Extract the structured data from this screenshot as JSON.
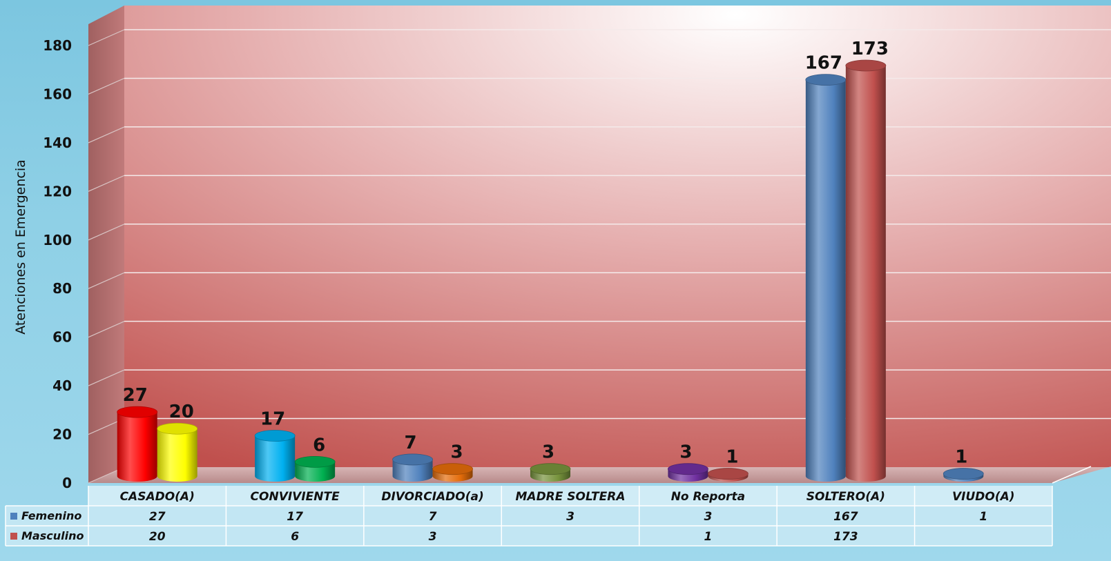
{
  "chart_data": {
    "type": "bar",
    "ylabel": "Atenciones en Emergencia",
    "ylim": [
      0,
      180
    ],
    "yticks": [
      0,
      20,
      40,
      60,
      80,
      100,
      120,
      140,
      160,
      180
    ],
    "grid": true,
    "categories": [
      "CASADO(A)",
      "CONVIVIENTE",
      "DIVORCIADO(a)",
      "MADRE SOLTERA",
      "No Reporta",
      "SOLTERO(A)",
      "VIUDO(A)"
    ],
    "series": [
      {
        "name": "Femenino",
        "values": [
          27,
          17,
          7,
          3,
          3,
          167,
          1
        ],
        "legend_color": "#4f81bd"
      },
      {
        "name": "Masculino",
        "values": [
          20,
          6,
          3,
          null,
          1,
          173,
          null
        ],
        "legend_color": "#c0504d"
      }
    ],
    "bar_colors": [
      [
        "#ff0000",
        "#ffff00"
      ],
      [
        "#00b0f0",
        "#00b050"
      ],
      [
        "#4f81bd",
        "#e46c0a"
      ],
      [
        "#77933c",
        null
      ],
      [
        "#7030a0",
        "#c0504d"
      ],
      [
        "#4f81bd",
        "#c0504d"
      ],
      [
        "#4f81bd",
        null
      ]
    ],
    "data_table": true
  }
}
